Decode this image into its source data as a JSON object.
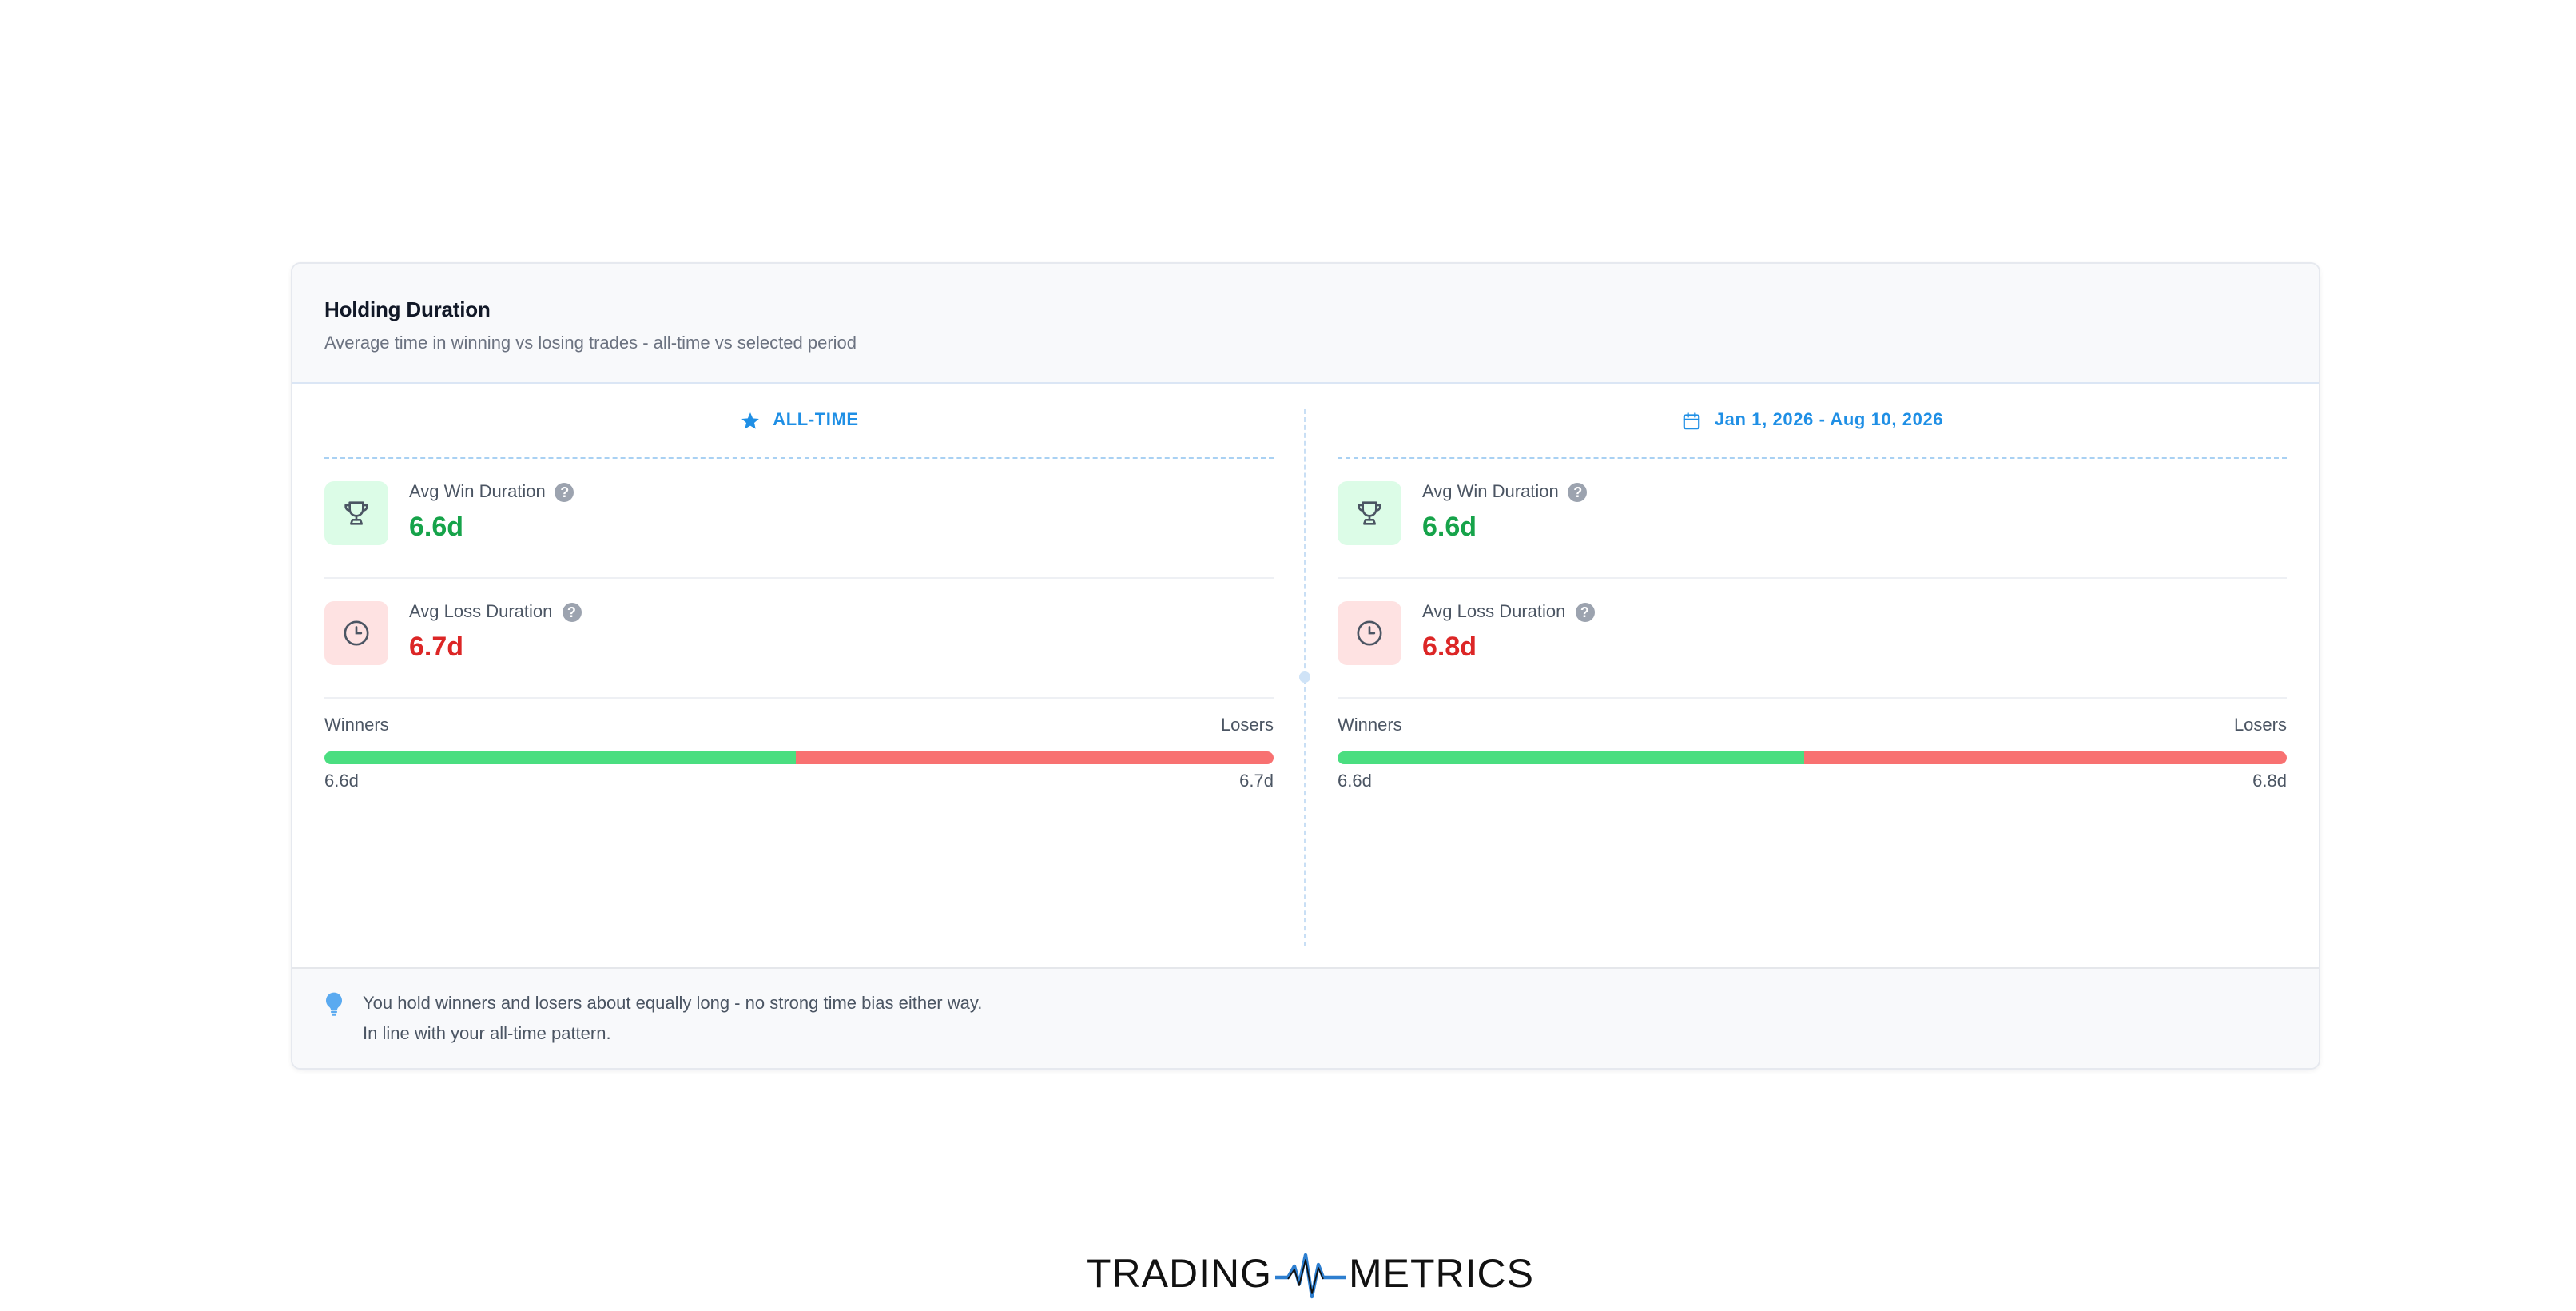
{
  "card": {
    "title": "Holding Duration",
    "subtitle": "Average time in winning vs losing trades - all-time vs selected period"
  },
  "columns": [
    {
      "header": "ALL-TIME",
      "header_icon": "star-icon",
      "win": {
        "label": "Avg Win Duration",
        "value": "6.6d",
        "icon": "trophy-icon"
      },
      "loss": {
        "label": "Avg Loss Duration",
        "value": "6.7d",
        "icon": "clock-icon"
      },
      "compare": {
        "winners_label": "Winners",
        "losers_label": "Losers",
        "winners_value": "6.6d",
        "losers_value": "6.7d",
        "win_share": 0.497
      }
    },
    {
      "header": "Jan 1, 2026 - Aug 10, 2026",
      "header_icon": "calendar-icon",
      "win": {
        "label": "Avg Win Duration",
        "value": "6.6d",
        "icon": "trophy-icon"
      },
      "loss": {
        "label": "Avg Loss Duration",
        "value": "6.8d",
        "icon": "clock-icon"
      },
      "compare": {
        "winners_label": "Winners",
        "losers_label": "Losers",
        "winners_value": "6.6d",
        "losers_value": "6.8d",
        "win_share": 0.492
      }
    }
  ],
  "footer": {
    "icon": "lightbulb-icon",
    "line1": "You hold winners and losers about equally long - no strong time bias either way.",
    "line2": "In line with your all-time pattern."
  },
  "brand": {
    "left": "TRADING",
    "right": "METRICS",
    "logo_icon": "pulse-logo-icon"
  },
  "colors": {
    "accent": "#1f8fe5",
    "win": "#16a34a",
    "loss": "#dc2626",
    "win_bar": "#4ade80",
    "loss_bar": "#f87171"
  }
}
